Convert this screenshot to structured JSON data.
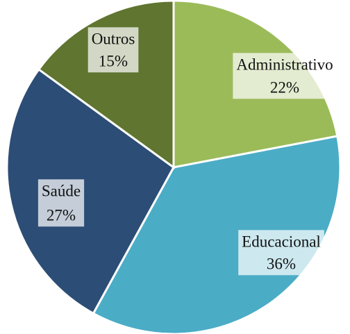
{
  "chart_data": {
    "type": "pie",
    "categories": [
      "Administrativo",
      "Educacional",
      "Saúde",
      "Outros"
    ],
    "values": [
      22,
      36,
      27,
      15
    ],
    "value_labels": [
      "22%",
      "36%",
      "27%",
      "15%"
    ],
    "colors": [
      "#9bbb59",
      "#4bacc6",
      "#2c4d75",
      "#5f7530"
    ]
  }
}
